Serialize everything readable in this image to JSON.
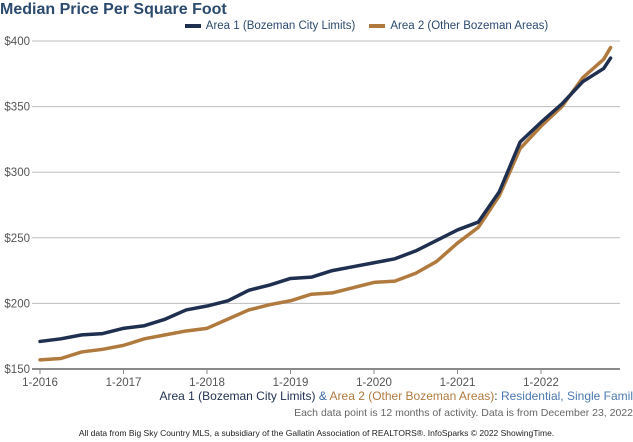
{
  "chart_data": {
    "type": "line",
    "title": "Median Price Per Square Foot",
    "ylim": [
      150,
      400
    ],
    "yticks": [
      150,
      200,
      250,
      300,
      350,
      400
    ],
    "ytick_labels": [
      "$150",
      "$200",
      "$250",
      "$300",
      "$350",
      "$400"
    ],
    "xtick_labels": [
      "1-2016",
      "1-2017",
      "1-2018",
      "1-2019",
      "1-2020",
      "1-2021",
      "1-2022"
    ],
    "grid": true,
    "legend": "top-center",
    "x": [
      "2016-01",
      "2016-04",
      "2016-07",
      "2016-10",
      "2017-01",
      "2017-04",
      "2017-07",
      "2017-10",
      "2018-01",
      "2018-04",
      "2018-07",
      "2018-10",
      "2019-01",
      "2019-04",
      "2019-07",
      "2019-10",
      "2020-01",
      "2020-04",
      "2020-07",
      "2020-10",
      "2021-01",
      "2021-04",
      "2021-07",
      "2021-10",
      "2022-01",
      "2022-04",
      "2022-07",
      "2022-10",
      "2022-11"
    ],
    "series": [
      {
        "name": "Area 1 (Bozeman City Limits)",
        "color": "#1f2f4f",
        "values": [
          171,
          173,
          176,
          177,
          181,
          183,
          188,
          195,
          198,
          202,
          210,
          214,
          219,
          220,
          225,
          228,
          231,
          234,
          240,
          248,
          256,
          262,
          285,
          323,
          338,
          352,
          369,
          379,
          387
        ]
      },
      {
        "name": "Area 2 (Other Bozeman Areas)",
        "color": "#b07a3f",
        "values": [
          157,
          158,
          163,
          165,
          168,
          173,
          176,
          179,
          181,
          188,
          195,
          199,
          202,
          207,
          208,
          212,
          216,
          217,
          223,
          232,
          246,
          258,
          282,
          318,
          335,
          350,
          372,
          386,
          395
        ]
      }
    ]
  },
  "subtitle": {
    "area1": "Area 1 (Bozeman City Limits)",
    "amp": " & ",
    "area2": "Area 2 (Other Bozeman Areas)",
    "colon": ": ",
    "type": "Residential, Single Famil"
  },
  "note": "Each data point is 12 months of activity. Data is from December 23, 2022",
  "footer": "All data from Big Sky Country MLS, a subsidiary of the Gallatin Association of REALTORS®. InfoSparks © 2022 ShowingTime."
}
